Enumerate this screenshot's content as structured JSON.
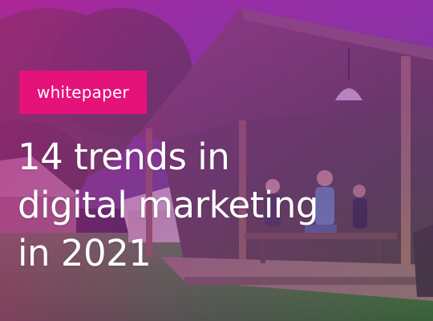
{
  "badge": {
    "label": "whitepaper",
    "color": "#e5127a"
  },
  "headline": {
    "lines": [
      "14 trends in",
      "digital marketing",
      "in 2021"
    ]
  },
  "overlay": {
    "gradient_start": "#be1e8c",
    "gradient_end": "#6e28be"
  }
}
